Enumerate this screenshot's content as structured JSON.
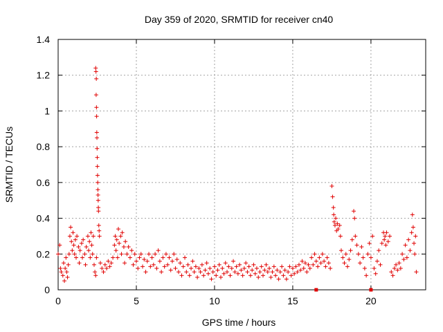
{
  "chart_data": {
    "type": "scatter",
    "title": "Day 359 of 2020, SRMTID for receiver cn40",
    "xlabel": "GPS time / hours",
    "ylabel": "SRMTID / TECUs",
    "xlim": [
      0,
      23.5
    ],
    "ylim": [
      0,
      1.4
    ],
    "x_ticks": [
      0,
      5,
      10,
      15,
      20
    ],
    "x_tick_labels": [
      "0",
      "5",
      "10",
      "15",
      "20"
    ],
    "y_ticks": [
      0,
      0.2,
      0.4,
      0.6,
      0.8,
      1.0,
      1.2,
      1.4
    ],
    "y_tick_labels": [
      "0",
      "0.2",
      "0.4",
      "0.6",
      "0.8",
      "1",
      "1.2",
      "1.4"
    ],
    "grid": true,
    "marker": "plus",
    "color": "#e00000",
    "square_markers": [
      {
        "x": 16.5,
        "y": 0.0
      },
      {
        "x": 20.0,
        "y": 0.0
      }
    ],
    "series": [
      {
        "name": "SRMTID",
        "points": [
          [
            0.0,
            0.2
          ],
          [
            0.1,
            0.25
          ],
          [
            0.15,
            0.12
          ],
          [
            0.2,
            0.1
          ],
          [
            0.3,
            0.08
          ],
          [
            0.35,
            0.15
          ],
          [
            0.4,
            0.05
          ],
          [
            0.45,
            0.12
          ],
          [
            0.5,
            0.18
          ],
          [
            0.55,
            0.1
          ],
          [
            0.6,
            0.07
          ],
          [
            0.65,
            0.14
          ],
          [
            0.7,
            0.2
          ],
          [
            0.75,
            0.3
          ],
          [
            0.8,
            0.35
          ],
          [
            0.85,
            0.27
          ],
          [
            0.9,
            0.22
          ],
          [
            0.95,
            0.32
          ],
          [
            1.0,
            0.25
          ],
          [
            1.05,
            0.2
          ],
          [
            1.1,
            0.28
          ],
          [
            1.15,
            0.18
          ],
          [
            1.2,
            0.3
          ],
          [
            1.3,
            0.24
          ],
          [
            1.35,
            0.15
          ],
          [
            1.4,
            0.22
          ],
          [
            1.5,
            0.26
          ],
          [
            1.55,
            0.18
          ],
          [
            1.6,
            0.28
          ],
          [
            1.7,
            0.2
          ],
          [
            1.75,
            0.14
          ],
          [
            1.8,
            0.24
          ],
          [
            1.9,
            0.3
          ],
          [
            1.95,
            0.22
          ],
          [
            2.0,
            0.27
          ],
          [
            2.05,
            0.18
          ],
          [
            2.1,
            0.32
          ],
          [
            2.15,
            0.25
          ],
          [
            2.2,
            0.2
          ],
          [
            2.25,
            0.3
          ],
          [
            2.3,
            0.14
          ],
          [
            2.35,
            0.1
          ],
          [
            2.4,
            0.08
          ],
          [
            2.45,
            0.18
          ],
          [
            2.4,
            1.24
          ],
          [
            2.42,
            1.22
          ],
          [
            2.44,
            1.18
          ],
          [
            2.43,
            1.09
          ],
          [
            2.45,
            1.02
          ],
          [
            2.46,
            0.97
          ],
          [
            2.47,
            0.88
          ],
          [
            2.48,
            0.85
          ],
          [
            2.49,
            0.79
          ],
          [
            2.5,
            0.74
          ],
          [
            2.51,
            0.69
          ],
          [
            2.52,
            0.64
          ],
          [
            2.53,
            0.6
          ],
          [
            2.54,
            0.56
          ],
          [
            2.55,
            0.53
          ],
          [
            2.56,
            0.5
          ],
          [
            2.57,
            0.46
          ],
          [
            2.58,
            0.44
          ],
          [
            2.6,
            0.36
          ],
          [
            2.62,
            0.33
          ],
          [
            2.64,
            0.3
          ],
          [
            2.7,
            0.15
          ],
          [
            2.8,
            0.12
          ],
          [
            2.9,
            0.1
          ],
          [
            3.0,
            0.14
          ],
          [
            3.1,
            0.12
          ],
          [
            3.2,
            0.16
          ],
          [
            3.3,
            0.13
          ],
          [
            3.4,
            0.15
          ],
          [
            3.5,
            0.18
          ],
          [
            3.6,
            0.25
          ],
          [
            3.65,
            0.3
          ],
          [
            3.7,
            0.22
          ],
          [
            3.75,
            0.28
          ],
          [
            3.8,
            0.18
          ],
          [
            3.85,
            0.34
          ],
          [
            3.9,
            0.26
          ],
          [
            4.0,
            0.3
          ],
          [
            4.05,
            0.2
          ],
          [
            4.1,
            0.32
          ],
          [
            4.2,
            0.24
          ],
          [
            4.25,
            0.15
          ],
          [
            4.3,
            0.27
          ],
          [
            4.4,
            0.2
          ],
          [
            4.5,
            0.24
          ],
          [
            4.6,
            0.18
          ],
          [
            4.7,
            0.22
          ],
          [
            4.8,
            0.14
          ],
          [
            4.9,
            0.2
          ],
          [
            5.0,
            0.16
          ],
          [
            5.1,
            0.12
          ],
          [
            5.2,
            0.18
          ],
          [
            5.3,
            0.2
          ],
          [
            5.4,
            0.13
          ],
          [
            5.5,
            0.17
          ],
          [
            5.6,
            0.1
          ],
          [
            5.7,
            0.16
          ],
          [
            5.8,
            0.2
          ],
          [
            5.9,
            0.13
          ],
          [
            6.0,
            0.18
          ],
          [
            6.1,
            0.14
          ],
          [
            6.2,
            0.2
          ],
          [
            6.3,
            0.12
          ],
          [
            6.4,
            0.22
          ],
          [
            6.5,
            0.16
          ],
          [
            6.6,
            0.1
          ],
          [
            6.7,
            0.18
          ],
          [
            6.8,
            0.13
          ],
          [
            6.9,
            0.2
          ],
          [
            7.0,
            0.14
          ],
          [
            7.1,
            0.18
          ],
          [
            7.2,
            0.11
          ],
          [
            7.3,
            0.16
          ],
          [
            7.4,
            0.2
          ],
          [
            7.5,
            0.12
          ],
          [
            7.6,
            0.17
          ],
          [
            7.7,
            0.1
          ],
          [
            7.8,
            0.15
          ],
          [
            7.9,
            0.08
          ],
          [
            8.0,
            0.13
          ],
          [
            8.1,
            0.18
          ],
          [
            8.2,
            0.1
          ],
          [
            8.3,
            0.14
          ],
          [
            8.4,
            0.08
          ],
          [
            8.5,
            0.12
          ],
          [
            8.6,
            0.16
          ],
          [
            8.7,
            0.1
          ],
          [
            8.8,
            0.13
          ],
          [
            8.9,
            0.07
          ],
          [
            9.0,
            0.12
          ],
          [
            9.1,
            0.1
          ],
          [
            9.2,
            0.14
          ],
          [
            9.3,
            0.08
          ],
          [
            9.4,
            0.11
          ],
          [
            9.5,
            0.15
          ],
          [
            9.6,
            0.09
          ],
          [
            9.7,
            0.12
          ],
          [
            9.8,
            0.06
          ],
          [
            9.9,
            0.1
          ],
          [
            10.0,
            0.13
          ],
          [
            10.1,
            0.08
          ],
          [
            10.2,
            0.11
          ],
          [
            10.3,
            0.14
          ],
          [
            10.4,
            0.07
          ],
          [
            10.5,
            0.12
          ],
          [
            10.6,
            0.09
          ],
          [
            10.7,
            0.15
          ],
          [
            10.8,
            0.1
          ],
          [
            10.9,
            0.13
          ],
          [
            11.0,
            0.08
          ],
          [
            11.1,
            0.12
          ],
          [
            11.2,
            0.16
          ],
          [
            11.3,
            0.1
          ],
          [
            11.4,
            0.13
          ],
          [
            11.5,
            0.09
          ],
          [
            11.6,
            0.14
          ],
          [
            11.7,
            0.11
          ],
          [
            11.8,
            0.08
          ],
          [
            11.9,
            0.12
          ],
          [
            12.0,
            0.15
          ],
          [
            12.1,
            0.1
          ],
          [
            12.2,
            0.13
          ],
          [
            12.3,
            0.08
          ],
          [
            12.4,
            0.11
          ],
          [
            12.5,
            0.14
          ],
          [
            12.6,
            0.09
          ],
          [
            12.7,
            0.12
          ],
          [
            12.8,
            0.07
          ],
          [
            12.9,
            0.1
          ],
          [
            13.0,
            0.13
          ],
          [
            13.1,
            0.08
          ],
          [
            13.2,
            0.11
          ],
          [
            13.3,
            0.14
          ],
          [
            13.4,
            0.1
          ],
          [
            13.5,
            0.12
          ],
          [
            13.6,
            0.07
          ],
          [
            13.7,
            0.1
          ],
          [
            13.8,
            0.13
          ],
          [
            13.9,
            0.08
          ],
          [
            14.0,
            0.11
          ],
          [
            14.1,
            0.06
          ],
          [
            14.2,
            0.1
          ],
          [
            14.3,
            0.13
          ],
          [
            14.4,
            0.08
          ],
          [
            14.5,
            0.11
          ],
          [
            14.6,
            0.06
          ],
          [
            14.7,
            0.1
          ],
          [
            14.8,
            0.13
          ],
          [
            14.9,
            0.08
          ],
          [
            15.0,
            0.12
          ],
          [
            15.1,
            0.09
          ],
          [
            15.2,
            0.13
          ],
          [
            15.3,
            0.1
          ],
          [
            15.4,
            0.14
          ],
          [
            15.5,
            0.11
          ],
          [
            15.6,
            0.16
          ],
          [
            15.7,
            0.12
          ],
          [
            15.8,
            0.15
          ],
          [
            15.9,
            0.1
          ],
          [
            16.0,
            0.14
          ],
          [
            16.1,
            0.12
          ],
          [
            16.2,
            0.18
          ],
          [
            16.3,
            0.14
          ],
          [
            16.4,
            0.2
          ],
          [
            16.5,
            0.16
          ],
          [
            16.6,
            0.13
          ],
          [
            16.7,
            0.18
          ],
          [
            16.8,
            0.15
          ],
          [
            16.9,
            0.2
          ],
          [
            17.0,
            0.16
          ],
          [
            17.1,
            0.13
          ],
          [
            17.2,
            0.18
          ],
          [
            17.3,
            0.15
          ],
          [
            17.4,
            0.12
          ],
          [
            17.5,
            0.58
          ],
          [
            17.55,
            0.52
          ],
          [
            17.6,
            0.46
          ],
          [
            17.62,
            0.42
          ],
          [
            17.65,
            0.38
          ],
          [
            17.7,
            0.36
          ],
          [
            17.75,
            0.4
          ],
          [
            17.8,
            0.33
          ],
          [
            17.85,
            0.37
          ],
          [
            17.9,
            0.34
          ],
          [
            18.0,
            0.36
          ],
          [
            18.05,
            0.3
          ],
          [
            18.1,
            0.22
          ],
          [
            18.2,
            0.18
          ],
          [
            18.3,
            0.15
          ],
          [
            18.4,
            0.2
          ],
          [
            18.5,
            0.13
          ],
          [
            18.6,
            0.17
          ],
          [
            18.7,
            0.22
          ],
          [
            18.8,
            0.28
          ],
          [
            18.9,
            0.44
          ],
          [
            18.95,
            0.4
          ],
          [
            19.0,
            0.3
          ],
          [
            19.1,
            0.25
          ],
          [
            19.2,
            0.2
          ],
          [
            19.3,
            0.15
          ],
          [
            19.4,
            0.24
          ],
          [
            19.5,
            0.18
          ],
          [
            19.6,
            0.12
          ],
          [
            19.7,
            0.08
          ],
          [
            19.8,
            0.2
          ],
          [
            19.9,
            0.26
          ],
          [
            20.0,
            0.18
          ],
          [
            20.1,
            0.3
          ],
          [
            20.2,
            0.12
          ],
          [
            20.3,
            0.09
          ],
          [
            20.4,
            0.16
          ],
          [
            20.5,
            0.22
          ],
          [
            20.6,
            0.14
          ],
          [
            20.7,
            0.26
          ],
          [
            20.8,
            0.32
          ],
          [
            20.85,
            0.28
          ],
          [
            20.9,
            0.3
          ],
          [
            20.95,
            0.25
          ],
          [
            21.0,
            0.32
          ],
          [
            21.1,
            0.27
          ],
          [
            21.2,
            0.3
          ],
          [
            21.3,
            0.1
          ],
          [
            21.4,
            0.08
          ],
          [
            21.5,
            0.12
          ],
          [
            21.6,
            0.14
          ],
          [
            21.7,
            0.11
          ],
          [
            21.8,
            0.15
          ],
          [
            21.9,
            0.12
          ],
          [
            22.0,
            0.2
          ],
          [
            22.1,
            0.17
          ],
          [
            22.2,
            0.25
          ],
          [
            22.3,
            0.18
          ],
          [
            22.4,
            0.28
          ],
          [
            22.5,
            0.22
          ],
          [
            22.6,
            0.32
          ],
          [
            22.65,
            0.42
          ],
          [
            22.7,
            0.35
          ],
          [
            22.75,
            0.26
          ],
          [
            22.8,
            0.2
          ],
          [
            22.85,
            0.3
          ],
          [
            22.9,
            0.1
          ]
        ]
      }
    ]
  }
}
